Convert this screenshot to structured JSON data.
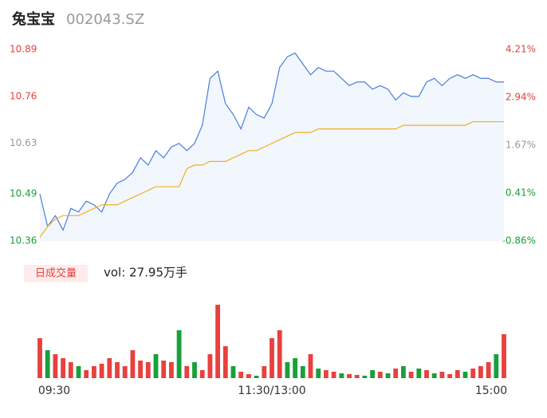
{
  "chart_data": {
    "type": "intraday",
    "title": "兔宝宝",
    "subtitle": "002043.SZ",
    "volume_label": "日成交量",
    "volume_text": "vol: 27.95万手",
    "xlabels": [
      {
        "index": 0,
        "label": "09:30"
      },
      {
        "index": 30,
        "label": "11:30/13:00"
      },
      {
        "index": 60,
        "label": "15:00"
      }
    ],
    "ylim": [
      10.36,
      10.89
    ],
    "yticks": [
      10.89,
      10.76,
      10.63,
      10.49,
      10.36
    ],
    "y2lim": [
      -0.86,
      4.21
    ],
    "y2ticks": [
      {
        "value": 4.21,
        "label": "4.21%"
      },
      {
        "value": 2.94,
        "label": "2.94%"
      },
      {
        "value": 1.67,
        "label": "1.67%"
      },
      {
        "value": 0.41,
        "label": "0.41%"
      },
      {
        "value": -0.86,
        "label": "-0.86%"
      }
    ],
    "tick_colors": [
      "#e8413e",
      "#e8413e",
      "#999999",
      "#18a03a",
      "#18a03a"
    ],
    "price": {
      "color": "#4a7de0",
      "fill": "#f2f6fd",
      "values": [
        10.49,
        10.4,
        10.43,
        10.39,
        10.45,
        10.44,
        10.47,
        10.46,
        10.44,
        10.49,
        10.52,
        10.53,
        10.55,
        10.59,
        10.57,
        10.61,
        10.59,
        10.62,
        10.63,
        10.61,
        10.63,
        10.68,
        10.81,
        10.83,
        10.74,
        10.71,
        10.67,
        10.73,
        10.71,
        10.7,
        10.74,
        10.84,
        10.87,
        10.88,
        10.85,
        10.82,
        10.84,
        10.83,
        10.83,
        10.81,
        10.79,
        10.8,
        10.8,
        10.78,
        10.79,
        10.78,
        10.75,
        10.77,
        10.76,
        10.76,
        10.8,
        10.81,
        10.79,
        10.81,
        10.82,
        10.81,
        10.82,
        10.81,
        10.81,
        10.8,
        10.8
      ]
    },
    "average": {
      "color": "#f0b020",
      "values": [
        10.37,
        10.4,
        10.42,
        10.43,
        10.43,
        10.43,
        10.44,
        10.45,
        10.46,
        10.46,
        10.46,
        10.47,
        10.48,
        10.49,
        10.5,
        10.51,
        10.51,
        10.51,
        10.51,
        10.56,
        10.57,
        10.57,
        10.58,
        10.58,
        10.58,
        10.59,
        10.6,
        10.61,
        10.61,
        10.62,
        10.63,
        10.64,
        10.65,
        10.66,
        10.66,
        10.66,
        10.67,
        10.67,
        10.67,
        10.67,
        10.67,
        10.67,
        10.67,
        10.67,
        10.67,
        10.67,
        10.67,
        10.68,
        10.68,
        10.68,
        10.68,
        10.68,
        10.68,
        10.68,
        10.68,
        10.68,
        10.69,
        10.69,
        10.69,
        10.69,
        10.69
      ]
    },
    "volume": {
      "up_color": "#e8413e",
      "down_color": "#18a03a",
      "values": [
        50,
        35,
        30,
        25,
        20,
        15,
        10,
        15,
        18,
        25,
        20,
        15,
        35,
        22,
        20,
        30,
        22,
        20,
        60,
        15,
        20,
        10,
        30,
        92,
        40,
        15,
        8,
        5,
        3,
        15,
        50,
        60,
        20,
        25,
        15,
        30,
        12,
        10,
        8,
        6,
        5,
        4,
        3,
        10,
        8,
        6,
        12,
        15,
        8,
        12,
        10,
        6,
        8,
        5,
        10,
        8,
        12,
        15,
        20,
        30,
        55
      ],
      "rising": [
        true,
        false,
        true,
        true,
        true,
        false,
        true,
        true,
        true,
        true,
        true,
        true,
        true,
        true,
        true,
        false,
        true,
        true,
        false,
        true,
        false,
        true,
        true,
        true,
        true,
        false,
        true,
        true,
        false,
        true,
        true,
        true,
        false,
        false,
        false,
        true,
        false,
        true,
        true,
        false,
        true,
        true,
        false,
        false,
        true,
        false,
        true,
        false,
        true,
        false,
        true,
        false,
        true,
        true,
        true,
        false,
        true,
        true,
        true,
        false,
        true
      ]
    }
  }
}
